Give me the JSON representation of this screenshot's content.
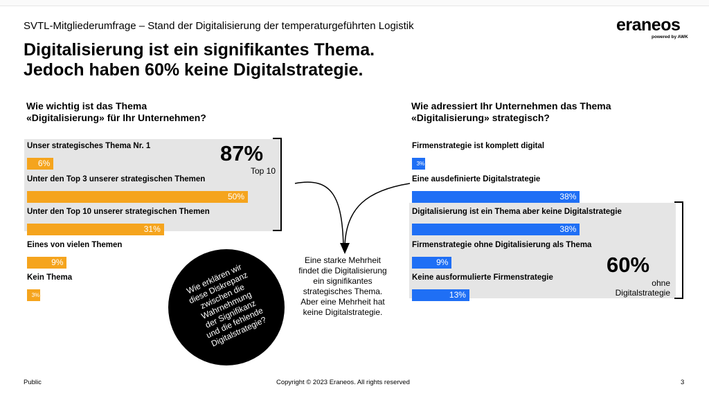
{
  "header": {
    "kicker": "SVTL-Mitgliederumfrage – Stand der Digitalisierung der temperaturgeführten Logistik",
    "logo": "eraneos",
    "logo_sub": "powered by AWK",
    "title_line1": "Digitalisierung ist ein signifikantes Thema.",
    "title_line2": "Jedoch haben 60% keine Digitalstrategie."
  },
  "left": {
    "question_line1": "Wie wichtig ist das Thema",
    "question_line2": "«Digitalisierung» für Ihr Unternehmen?",
    "highlight_value": "87%",
    "highlight_label": "Top 10"
  },
  "right": {
    "question_line1": "Wie adressiert Ihr Unternehmen das Thema",
    "question_line2": "«Digitalisierung» strategisch?",
    "highlight_value": "60%",
    "highlight_label_line1": "ohne",
    "highlight_label_line2": "Digitalstrategie"
  },
  "middle": {
    "line1": "Eine starke Mehrheit",
    "line2": "findet die Digitalisierung",
    "line3": "ein signifikantes",
    "line4": "strategisches Thema.",
    "line5": "Aber eine Mehrheit hat",
    "line6": "keine Digitalstrategie."
  },
  "circle": {
    "line1": "Wie erklären wir",
    "line2": "diese Diskrepanz",
    "line3": "zwischen die",
    "line4": "Wahrnehmung",
    "line5": "der Signifikanz",
    "line6": "und die fehlende",
    "line7": "Digitalstrategie?"
  },
  "footer": {
    "left": "Public",
    "center": "Copyright © 2023 Eraneos. All rights reserved",
    "page": "3"
  },
  "colors": {
    "left_bars": "#f5a41d",
    "right_bars": "#1f6ff5",
    "highlight_bg": "#e5e5e5"
  },
  "chart_data": [
    {
      "type": "bar",
      "orientation": "horizontal",
      "categories": [
        "Unser strategisches Thema Nr. 1",
        "Unter den Top 3 unserer strategischen Themen",
        "Unter den Top 10 unserer strategischen Themen",
        "Eines von vielen Themen",
        "Kein Thema"
      ],
      "values": [
        6,
        50,
        31,
        9,
        3
      ],
      "labels": [
        "6%",
        "50%",
        "31%",
        "9%",
        "3%"
      ],
      "unit": "%",
      "title": "Wie wichtig ist das Thema «Digitalisierung» für Ihr Unternehmen?"
    },
    {
      "type": "bar",
      "orientation": "horizontal",
      "categories": [
        "Firmenstrategie ist komplett digital",
        "Eine ausdefinierte Digitalstrategie",
        "Digitalisierung  ist ein Thema aber keine Digitalstrategie",
        "Firmenstrategie ohne Digitalisierung  als Thema",
        "Keine ausformulierte Firmenstrategie"
      ],
      "values": [
        3,
        38,
        38,
        9,
        13
      ],
      "labels": [
        "3%",
        "38%",
        "38%",
        "9%",
        "13%"
      ],
      "unit": "%",
      "title": "Wie adressiert Ihr Unternehmen das Thema «Digitalisierung» strategisch?"
    }
  ]
}
